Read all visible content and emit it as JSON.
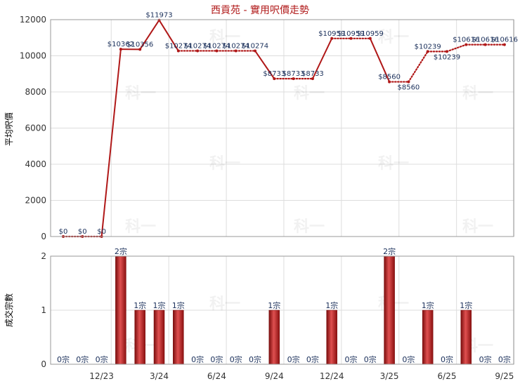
{
  "chart_data": [
    {
      "type": "line",
      "title": "西貢苑 - 實用呎價走勢",
      "ylabel": "平均呎價",
      "ylim": [
        0,
        12000
      ],
      "yticks": [
        0,
        2000,
        4000,
        6000,
        8000,
        10000,
        12000
      ],
      "x": [
        0,
        1,
        2,
        3,
        4,
        5,
        6,
        7,
        8,
        9,
        10,
        11,
        12,
        13,
        14,
        15,
        16,
        17,
        18,
        19,
        20,
        21,
        22,
        23
      ],
      "values": [
        0,
        0,
        0,
        10362,
        10356,
        11973,
        10274,
        10274,
        10274,
        10274,
        10274,
        8733,
        8733,
        8733,
        10959,
        10959,
        10959,
        8560,
        8560,
        10239,
        10239,
        10616,
        10616,
        10616
      ],
      "data_labels": [
        "$0",
        "$0",
        "$0",
        "$10362",
        "$10356",
        "$11973",
        "$10274",
        "$10274",
        "$10274",
        "$10274",
        "$10274",
        "$8733",
        "$8733",
        "$8733",
        "$10959",
        "$10959",
        "$10959",
        "$8560",
        "$8560",
        "$10239",
        "$10239",
        "$10616",
        "$10616",
        "$10616"
      ],
      "interpolated": [
        false,
        true,
        false,
        false,
        false,
        false,
        false,
        true,
        true,
        true,
        false,
        false,
        true,
        false,
        false,
        true,
        false,
        false,
        true,
        false,
        true,
        false,
        true,
        false
      ],
      "line_color": "#b01818",
      "grid": true
    },
    {
      "type": "bar",
      "ylabel": "成交宗數",
      "ylim": [
        0,
        2
      ],
      "yticks": [
        0,
        1,
        2
      ],
      "x": [
        0,
        1,
        2,
        3,
        4,
        5,
        6,
        7,
        8,
        9,
        10,
        11,
        12,
        13,
        14,
        15,
        16,
        17,
        18,
        19,
        20,
        21,
        22,
        23
      ],
      "values": [
        0,
        0,
        0,
        2,
        1,
        1,
        1,
        0,
        0,
        0,
        0,
        1,
        0,
        0,
        1,
        0,
        0,
        2,
        0,
        1,
        0,
        1,
        0,
        0
      ],
      "data_labels": [
        "0宗",
        "0宗",
        "0宗",
        "2宗",
        "1宗",
        "1宗",
        "1宗",
        "0宗",
        "0宗",
        "0宗",
        "0宗",
        "1宗",
        "0宗",
        "0宗",
        "1宗",
        "0宗",
        "0宗",
        "2宗",
        "0宗",
        "1宗",
        "0宗",
        "1宗",
        "0宗",
        "0宗"
      ],
      "bar_color": "#b01818",
      "xtick_labels": [
        {
          "x": 2,
          "label": "12/23"
        },
        {
          "x": 5,
          "label": "3/24"
        },
        {
          "x": 8,
          "label": "6/24"
        },
        {
          "x": 11,
          "label": "9/24"
        },
        {
          "x": 14,
          "label": "12/24"
        },
        {
          "x": 17,
          "label": "3/25"
        },
        {
          "x": 20,
          "label": "6/25"
        },
        {
          "x": 23,
          "label": "9/25"
        }
      ],
      "grid": true
    }
  ],
  "watermark": "科一"
}
